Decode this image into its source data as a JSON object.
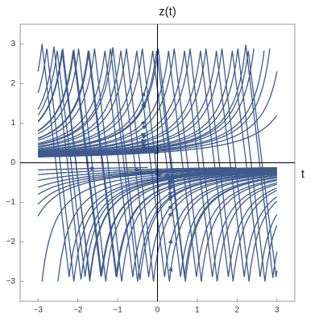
{
  "chart_data": {
    "type": "stream",
    "title": "z(t)",
    "x_label": "t",
    "color": "#3f5a8c",
    "xlim": [
      -3.45,
      3.45
    ],
    "ylim": [
      -3.5,
      3.5
    ],
    "xticks": [
      {
        "value": -3,
        "label": "−3"
      },
      {
        "value": -2,
        "label": "−2"
      },
      {
        "value": -1,
        "label": "−1"
      },
      0,
      1,
      2,
      3
    ],
    "yticks": [
      {
        "value": -3,
        "label": "−3"
      },
      {
        "value": -2,
        "label": "−2"
      },
      {
        "value": -1,
        "label": "−1"
      },
      0,
      1,
      2,
      3
    ]
  }
}
